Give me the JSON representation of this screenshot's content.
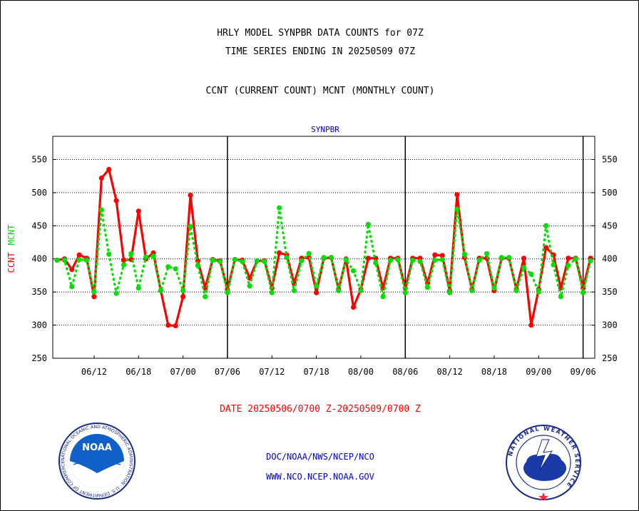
{
  "header": {
    "title_line1": "HRLY MODEL SYNPBR DATA COUNTS for 07Z",
    "title_line2": "TIME SERIES ENDING IN 20250509 07Z",
    "subtitle": "CCNT (CURRENT COUNT) MCNT (MONTHLY COUNT)"
  },
  "footer": {
    "date_range": "DATE 20250506/0700 Z-20250509/0700 Z",
    "org_path": "DOC/NOAA/NWS/NCEP/NCO",
    "website": "WWW.NCO.NCEP.NOAA.GOV"
  },
  "logos": {
    "noaa_text": "NOAA",
    "noaa_ring_text": "NATIONAL OCEANIC AND ATMOSPHERIC ADMINISTRATION · U.S. DEPARTMENT OF COMMERCE ·",
    "nws_ring_text": "NATIONAL WEATHER SERVICE"
  },
  "colors": {
    "ccnt": "#ff0000",
    "mcnt": "#00e000",
    "station_label": "#0000cc",
    "footer_date": "#ff0000",
    "footer_links": "#0000cc"
  },
  "chart_data": {
    "type": "line",
    "title": "SYNPBR",
    "ylabel_parts": [
      "CCNT",
      "MCNT"
    ],
    "ylim": [
      250,
      585
    ],
    "yticks": [
      250,
      300,
      350,
      400,
      450,
      500,
      550
    ],
    "x_tick_labels": [
      "06/12",
      "06/18",
      "07/00",
      "07/06",
      "07/12",
      "07/18",
      "08/00",
      "08/06",
      "08/12",
      "08/18",
      "09/00",
      "09/06"
    ],
    "x_tick_hours": [
      5,
      11,
      17,
      23,
      29,
      35,
      41,
      47,
      53,
      59,
      65,
      71
    ],
    "day_boundary_hours": [
      23,
      47,
      71
    ],
    "x_range_hours": [
      0,
      72
    ],
    "grid": true,
    "series": [
      {
        "name": "CCNT",
        "values": [
          398,
          400,
          384,
          406,
          401,
          343,
          522,
          535,
          488,
          398,
          399,
          472,
          400,
          409,
          352,
          300,
          299,
          343,
          496,
          397,
          356,
          399,
          397,
          354,
          399,
          398,
          371,
          397,
          397,
          356,
          409,
          406,
          363,
          401,
          402,
          349,
          401,
          402,
          354,
          400,
          327,
          354,
          401,
          401,
          356,
          401,
          401,
          356,
          401,
          401,
          363,
          406,
          405,
          352,
          497,
          402,
          354,
          401,
          401,
          352,
          401,
          401,
          354,
          401,
          300,
          354,
          417,
          406,
          356,
          401,
          401,
          356,
          401
        ]
      },
      {
        "name": "MCNT",
        "values": [
          398,
          398,
          358,
          399,
          398,
          350,
          474,
          407,
          348,
          391,
          408,
          356,
          403,
          404,
          352,
          388,
          385,
          352,
          449,
          390,
          343,
          398,
          396,
          349,
          399,
          396,
          359,
          397,
          396,
          349,
          477,
          402,
          352,
          397,
          408,
          359,
          402,
          402,
          352,
          399,
          382,
          352,
          452,
          394,
          343,
          398,
          399,
          349,
          398,
          396,
          357,
          398,
          399,
          349,
          475,
          407,
          352,
          398,
          408,
          356,
          402,
          402,
          352,
          387,
          377,
          350,
          450,
          391,
          343,
          390,
          400,
          349,
          397
        ]
      }
    ]
  }
}
